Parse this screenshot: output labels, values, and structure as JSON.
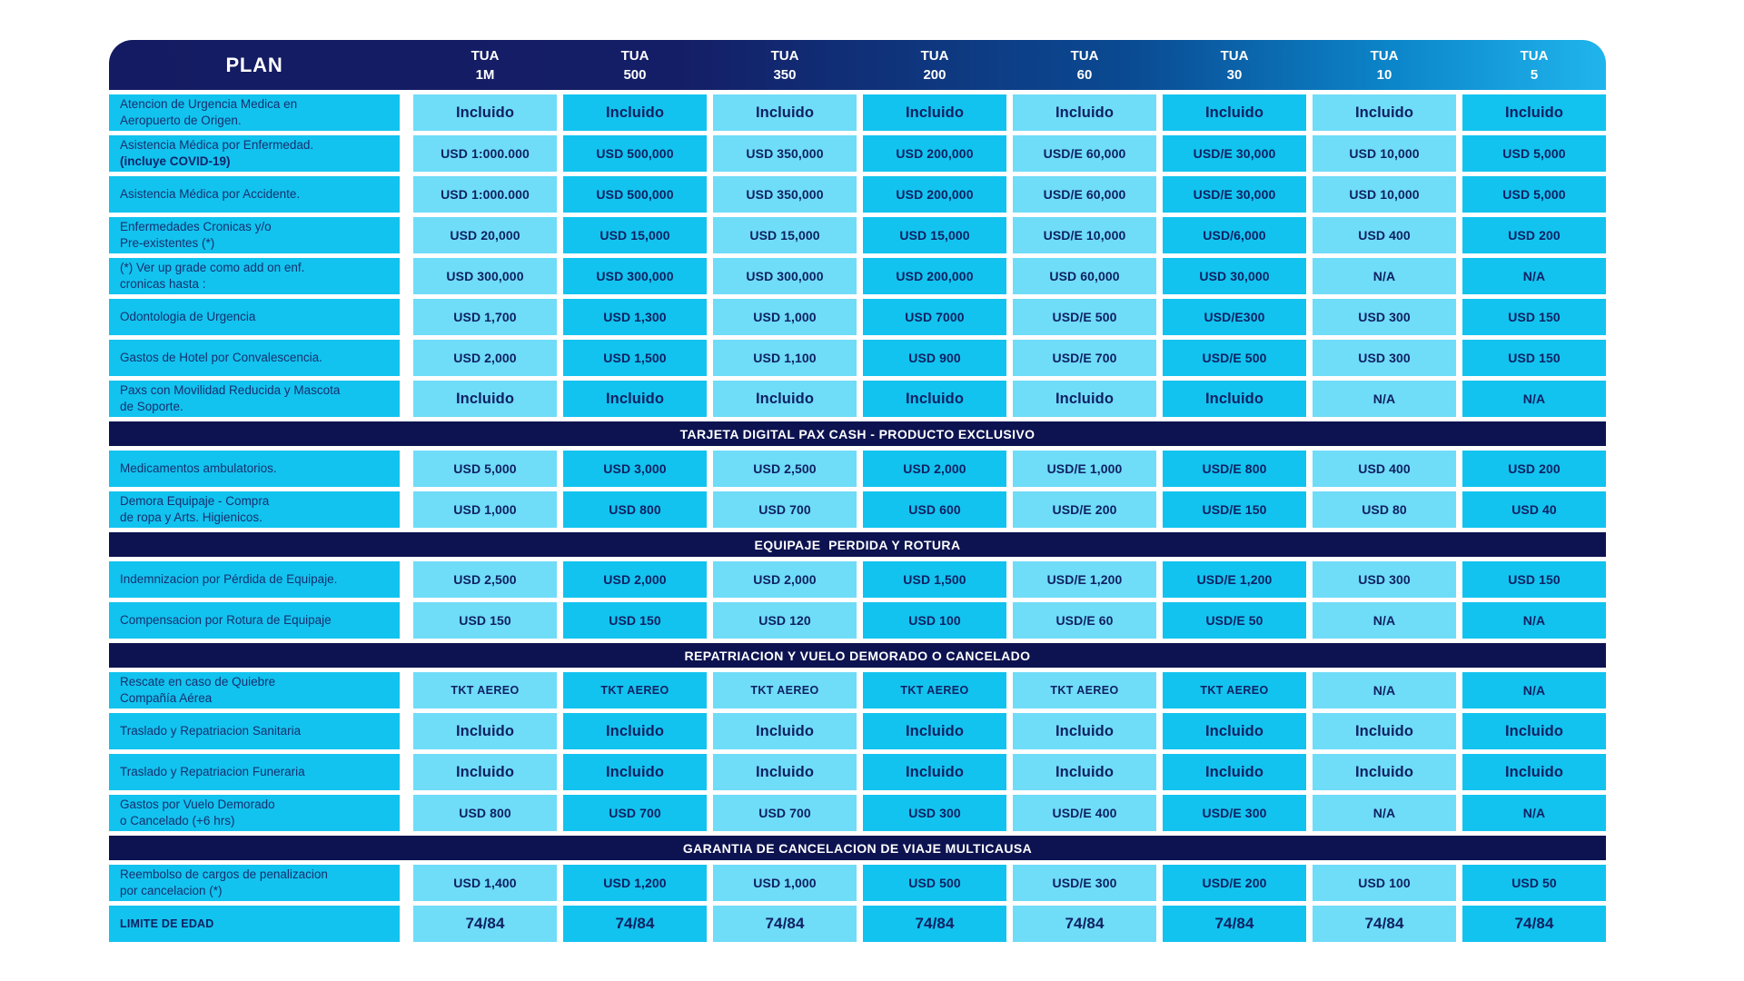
{
  "header": {
    "plan": "PLAN",
    "columns": [
      "TUA\n1M",
      "TUA\n500",
      "TUA\n350",
      "TUA\n200",
      "TUA\n60",
      "TUA\n30",
      "TUA\n10",
      "TUA\n5"
    ]
  },
  "colors": {
    "header_gradient_start": "#141B62",
    "header_gradient_end": "#20B5ED",
    "section_bar": "#0D1350",
    "cell_light": "#6FDCF8",
    "cell_dark": "#12C3EF",
    "text_navy": "#0E2163"
  },
  "sections": [
    {
      "title": "",
      "rows": [
        {
          "label": "Atencion de Urgencia Medica en\nAeropuerto de Origen.",
          "values": [
            "Incluido",
            "Incluido",
            "Incluido",
            "Incluido",
            "Incluido",
            "Incluido",
            "Incluido",
            "Incluido"
          ]
        },
        {
          "label": "Asistencia Médica por Enfermedad.",
          "label_bold": "(incluye COVID-19)",
          "values": [
            "USD 1:000.000",
            "USD 500,000",
            "USD 350,000",
            "USD 200,000",
            "USD/E 60,000",
            "USD/E 30,000",
            "USD 10,000",
            "USD 5,000"
          ]
        },
        {
          "label": "Asistencia Médica por Accidente.",
          "values": [
            "USD 1:000.000",
            "USD 500,000",
            "USD 350,000",
            "USD 200,000",
            "USD/E 60,000",
            "USD/E 30,000",
            "USD 10,000",
            "USD 5,000"
          ]
        },
        {
          "label": "Enfermedades Cronicas y/o\nPre-existentes (*)",
          "values": [
            "USD 20,000",
            "USD 15,000",
            "USD 15,000",
            "USD 15,000",
            "USD/E 10,000",
            "USD/6,000",
            "USD 400",
            "USD 200"
          ]
        },
        {
          "label": "(*) Ver up grade como add on enf.\ncronicas hasta :",
          "values": [
            "USD 300,000",
            "USD 300,000",
            "USD 300,000",
            "USD 200,000",
            "USD 60,000",
            "USD 30,000",
            "N/A",
            "N/A"
          ]
        },
        {
          "label": "Odontologia de Urgencia",
          "values": [
            "USD 1,700",
            "USD 1,300",
            "USD 1,000",
            "USD 7000",
            "USD/E 500",
            "USD/E300",
            "USD 300",
            "USD 150"
          ]
        },
        {
          "label": "Gastos de Hotel por Convalescencia.",
          "values": [
            "USD 2,000",
            "USD 1,500",
            "USD 1,100",
            "USD 900",
            "USD/E 700",
            "USD/E 500",
            "USD 300",
            "USD 150"
          ]
        },
        {
          "label": "Paxs con Movilidad Reducida y Mascota\nde Soporte.",
          "values": [
            "Incluido",
            "Incluido",
            "Incluido",
            "Incluido",
            "Incluido",
            "Incluido",
            "N/A",
            "N/A"
          ]
        }
      ]
    },
    {
      "title": "TARJETA DIGITAL PAX CASH - PRODUCTO EXCLUSIVO",
      "rows": [
        {
          "label": "Medicamentos ambulatorios.",
          "values": [
            "USD 5,000",
            "USD 3,000",
            "USD 2,500",
            "USD 2,000",
            "USD/E 1,000",
            "USD/E 800",
            "USD 400",
            "USD 200"
          ]
        },
        {
          "label": "Demora Equipaje - Compra\nde ropa y Arts. Higienicos.",
          "values": [
            "USD 1,000",
            "USD 800",
            "USD 700",
            "USD 600",
            "USD/E 200",
            "USD/E 150",
            "USD 80",
            "USD 40"
          ]
        }
      ]
    },
    {
      "title": "EQUIPAJE  PERDIDA Y ROTURA",
      "rows": [
        {
          "label": "Indemnizacion por Pérdida de Equipaje.",
          "values": [
            "USD 2,500",
            "USD 2,000",
            "USD 2,000",
            "USD 1,500",
            "USD/E 1,200",
            "USD/E 1,200",
            "USD 300",
            "USD 150"
          ]
        },
        {
          "label": "Compensacion por Rotura de Equipaje",
          "values": [
            "USD 150",
            "USD 150",
            "USD 120",
            "USD 100",
            "USD/E 60",
            "USD/E 50",
            "N/A",
            "N/A"
          ]
        }
      ]
    },
    {
      "title": "REPATRIACION Y VUELO DEMORADO O CANCELADO",
      "rows": [
        {
          "label": "Rescate en caso de Quiebre\nCompañía Aérea",
          "values": [
            "TKT AEREO",
            "TKT AEREO",
            "TKT AEREO",
            "TKT AEREO",
            "TKT AEREO",
            "TKT AEREO",
            "N/A",
            "N/A"
          ]
        },
        {
          "label": "Traslado y Repatriacion Sanitaria",
          "values": [
            "Incluido",
            "Incluido",
            "Incluido",
            "Incluido",
            "Incluido",
            "Incluido",
            "Incluido",
            "Incluido"
          ]
        },
        {
          "label": "Traslado y Repatriacion Funeraria",
          "values": [
            "Incluido",
            "Incluido",
            "Incluido",
            "Incluido",
            "Incluido",
            "Incluido",
            "Incluido",
            "Incluido"
          ]
        },
        {
          "label": "Gastos por Vuelo Demorado\no Cancelado (+6 hrs)",
          "values": [
            "USD 800",
            "USD 700",
            "USD 700",
            "USD 300",
            "USD/E 400",
            "USD/E 300",
            "N/A",
            "N/A"
          ]
        }
      ]
    },
    {
      "title": "GARANTIA DE CANCELACION DE VIAJE MULTICAUSA",
      "rows": [
        {
          "label": "Reembolso de cargos de penalizacion\npor cancelacion (*)",
          "values": [
            "USD 1,400",
            "USD 1,200",
            "USD 1,000",
            "USD 500",
            "USD/E 300",
            "USD/E 200",
            "USD 100",
            "USD 50"
          ]
        },
        {
          "label": "LIMITE DE EDAD",
          "label_strong": true,
          "values": [
            "74/84",
            "74/84",
            "74/84",
            "74/84",
            "74/84",
            "74/84",
            "74/84",
            "74/84"
          ]
        }
      ]
    }
  ]
}
